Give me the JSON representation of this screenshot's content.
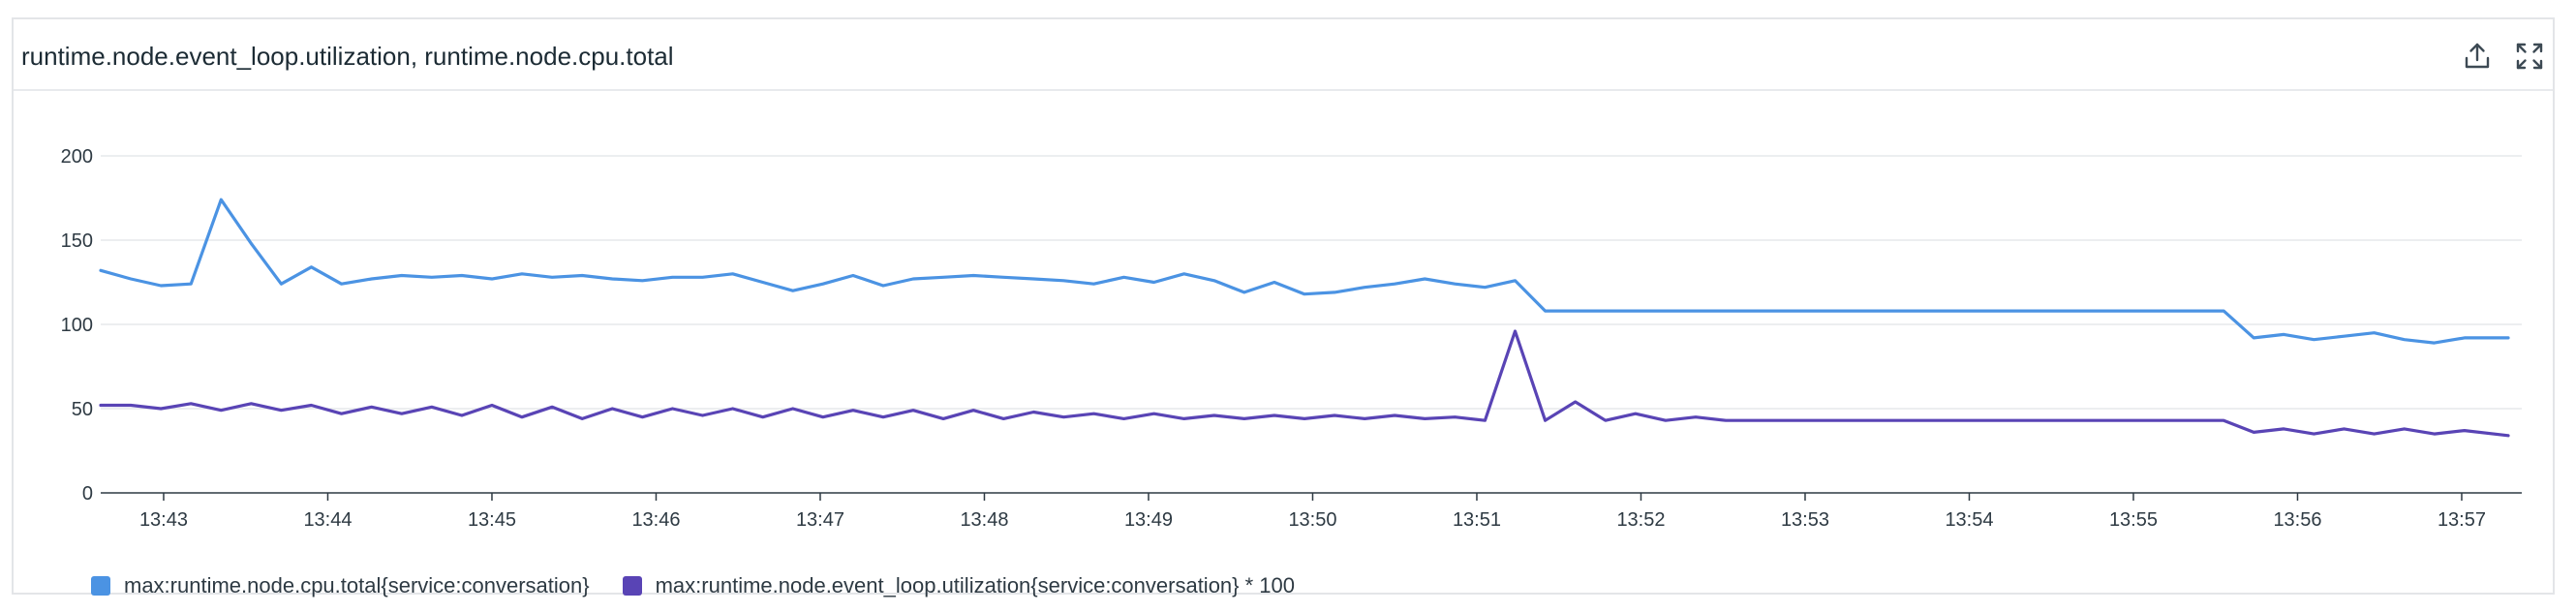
{
  "widget": {
    "title": "runtime.node.event_loop.utilization, runtime.node.cpu.total",
    "export_icon": "export-icon",
    "fullscreen_icon": "fullscreen-icon"
  },
  "colors": {
    "cpu_series": "#4b93e3",
    "event_loop_series": "#5944b5",
    "grid": "#e6e8eb",
    "axis": "#2e3a43"
  },
  "chart_data": {
    "type": "line",
    "ylim": [
      0,
      200
    ],
    "yticks": [
      0,
      50,
      100,
      150,
      200
    ],
    "xlim": [
      "13:42:37",
      "13:57:17"
    ],
    "xticks": [
      "13:43",
      "13:44",
      "13:45",
      "13:46",
      "13:47",
      "13:48",
      "13:49",
      "13:50",
      "13:51",
      "13:52",
      "13:53",
      "13:54",
      "13:55",
      "13:56",
      "13:57"
    ],
    "grid": true,
    "legend_position": "bottom-left",
    "series": [
      {
        "name": "max:runtime.node.cpu.total{service:conversation}",
        "color": "#4b93e3",
        "points": [
          [
            "13:42:37",
            132
          ],
          [
            "13:42:48",
            127
          ],
          [
            "13:42:59",
            123
          ],
          [
            "13:43:10",
            124
          ],
          [
            "13:43:21",
            174
          ],
          [
            "13:43:32",
            148
          ],
          [
            "13:43:43",
            124
          ],
          [
            "13:43:54",
            134
          ],
          [
            "13:44:05",
            124
          ],
          [
            "13:44:16",
            127
          ],
          [
            "13:44:27",
            129
          ],
          [
            "13:44:38",
            128
          ],
          [
            "13:44:49",
            129
          ],
          [
            "13:45:00",
            127
          ],
          [
            "13:45:11",
            130
          ],
          [
            "13:45:22",
            128
          ],
          [
            "13:45:33",
            129
          ],
          [
            "13:45:44",
            127
          ],
          [
            "13:45:55",
            126
          ],
          [
            "13:46:06",
            128
          ],
          [
            "13:46:17",
            128
          ],
          [
            "13:46:28",
            130
          ],
          [
            "13:46:39",
            125
          ],
          [
            "13:46:50",
            120
          ],
          [
            "13:47:01",
            124
          ],
          [
            "13:47:12",
            129
          ],
          [
            "13:47:23",
            123
          ],
          [
            "13:47:34",
            127
          ],
          [
            "13:47:45",
            128
          ],
          [
            "13:47:56",
            129
          ],
          [
            "13:48:07",
            128
          ],
          [
            "13:48:18",
            127
          ],
          [
            "13:48:29",
            126
          ],
          [
            "13:48:40",
            124
          ],
          [
            "13:48:51",
            128
          ],
          [
            "13:49:02",
            125
          ],
          [
            "13:49:13",
            130
          ],
          [
            "13:49:24",
            126
          ],
          [
            "13:49:35",
            119
          ],
          [
            "13:49:46",
            125
          ],
          [
            "13:49:57",
            118
          ],
          [
            "13:50:08",
            119
          ],
          [
            "13:50:19",
            122
          ],
          [
            "13:50:30",
            124
          ],
          [
            "13:50:41",
            127
          ],
          [
            "13:50:52",
            124
          ],
          [
            "13:51:03",
            122
          ],
          [
            "13:51:14",
            126
          ],
          [
            "13:51:25",
            108
          ],
          [
            "13:51:36",
            108
          ],
          [
            "13:52:00",
            108
          ],
          [
            "13:53:00",
            108
          ],
          [
            "13:54:00",
            108
          ],
          [
            "13:55:00",
            108
          ],
          [
            "13:55:33",
            108
          ],
          [
            "13:55:44",
            92
          ],
          [
            "13:55:55",
            94
          ],
          [
            "13:56:06",
            91
          ],
          [
            "13:56:17",
            93
          ],
          [
            "13:56:28",
            95
          ],
          [
            "13:56:39",
            91
          ],
          [
            "13:56:50",
            89
          ],
          [
            "13:57:01",
            92
          ],
          [
            "13:57:17",
            92
          ]
        ]
      },
      {
        "name": "max:runtime.node.event_loop.utilization{service:conversation} * 100",
        "color": "#5944b5",
        "points": [
          [
            "13:42:37",
            52
          ],
          [
            "13:42:48",
            52
          ],
          [
            "13:42:59",
            50
          ],
          [
            "13:43:10",
            53
          ],
          [
            "13:43:21",
            49
          ],
          [
            "13:43:32",
            53
          ],
          [
            "13:43:43",
            49
          ],
          [
            "13:43:54",
            52
          ],
          [
            "13:44:05",
            47
          ],
          [
            "13:44:16",
            51
          ],
          [
            "13:44:27",
            47
          ],
          [
            "13:44:38",
            51
          ],
          [
            "13:44:49",
            46
          ],
          [
            "13:45:00",
            52
          ],
          [
            "13:45:11",
            45
          ],
          [
            "13:45:22",
            51
          ],
          [
            "13:45:33",
            44
          ],
          [
            "13:45:44",
            50
          ],
          [
            "13:45:55",
            45
          ],
          [
            "13:46:06",
            50
          ],
          [
            "13:46:17",
            46
          ],
          [
            "13:46:28",
            50
          ],
          [
            "13:46:39",
            45
          ],
          [
            "13:46:50",
            50
          ],
          [
            "13:47:01",
            45
          ],
          [
            "13:47:12",
            49
          ],
          [
            "13:47:23",
            45
          ],
          [
            "13:47:34",
            49
          ],
          [
            "13:47:45",
            44
          ],
          [
            "13:47:56",
            49
          ],
          [
            "13:48:07",
            44
          ],
          [
            "13:48:18",
            48
          ],
          [
            "13:48:29",
            45
          ],
          [
            "13:48:40",
            47
          ],
          [
            "13:48:51",
            44
          ],
          [
            "13:49:02",
            47
          ],
          [
            "13:49:13",
            44
          ],
          [
            "13:49:24",
            46
          ],
          [
            "13:49:35",
            44
          ],
          [
            "13:49:46",
            46
          ],
          [
            "13:49:57",
            44
          ],
          [
            "13:50:08",
            46
          ],
          [
            "13:50:19",
            44
          ],
          [
            "13:50:30",
            46
          ],
          [
            "13:50:41",
            44
          ],
          [
            "13:50:52",
            45
          ],
          [
            "13:51:03",
            43
          ],
          [
            "13:51:14",
            96
          ],
          [
            "13:51:25",
            43
          ],
          [
            "13:51:36",
            54
          ],
          [
            "13:51:47",
            43
          ],
          [
            "13:51:58",
            47
          ],
          [
            "13:52:09",
            43
          ],
          [
            "13:52:20",
            45
          ],
          [
            "13:52:31",
            43
          ],
          [
            "13:52:42",
            43
          ],
          [
            "13:53:00",
            43
          ],
          [
            "13:54:00",
            43
          ],
          [
            "13:55:00",
            43
          ],
          [
            "13:55:33",
            43
          ],
          [
            "13:55:44",
            36
          ],
          [
            "13:55:55",
            38
          ],
          [
            "13:56:06",
            35
          ],
          [
            "13:56:17",
            38
          ],
          [
            "13:56:28",
            35
          ],
          [
            "13:56:39",
            38
          ],
          [
            "13:56:50",
            35
          ],
          [
            "13:57:01",
            37
          ],
          [
            "13:57:17",
            34
          ]
        ]
      }
    ]
  }
}
